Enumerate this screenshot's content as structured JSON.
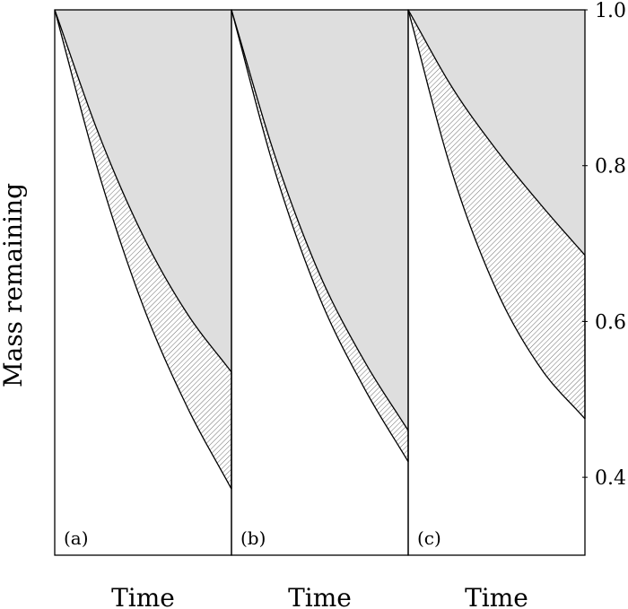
{
  "chart_data": {
    "type": "area",
    "ylabel": "Mass remaining",
    "ylim": [
      0.3,
      1.0
    ],
    "y_ticks": [
      "0.4",
      "0.6",
      "0.8",
      "1.0"
    ],
    "y_tick_values": [
      0.4,
      0.6,
      0.8,
      1.0
    ],
    "legend": "none",
    "grid": false,
    "panels": [
      {
        "tag": "(a)",
        "xlabel": "Time",
        "x": [
          0,
          0.25,
          0.5,
          0.75,
          1.0
        ],
        "upper_curve": [
          1.0,
          0.84,
          0.71,
          0.61,
          0.535
        ],
        "lower_curve": [
          1.0,
          0.79,
          0.62,
          0.49,
          0.385
        ]
      },
      {
        "tag": "(b)",
        "xlabel": "Time",
        "x": [
          0,
          0.25,
          0.5,
          0.75,
          1.0
        ],
        "upper_curve": [
          1.0,
          0.81,
          0.66,
          0.55,
          0.46
        ],
        "lower_curve": [
          1.0,
          0.79,
          0.63,
          0.515,
          0.42
        ]
      },
      {
        "tag": "(c)",
        "xlabel": "Time",
        "x": [
          0,
          0.25,
          0.5,
          0.75,
          1.0
        ],
        "upper_curve": [
          1.0,
          0.9,
          0.82,
          0.75,
          0.685
        ],
        "lower_curve": [
          1.0,
          0.79,
          0.64,
          0.54,
          0.475
        ]
      }
    ],
    "colors": {
      "shaded_region": "#dedede",
      "hatch": "#6e6e6e",
      "line": "#000000"
    }
  }
}
